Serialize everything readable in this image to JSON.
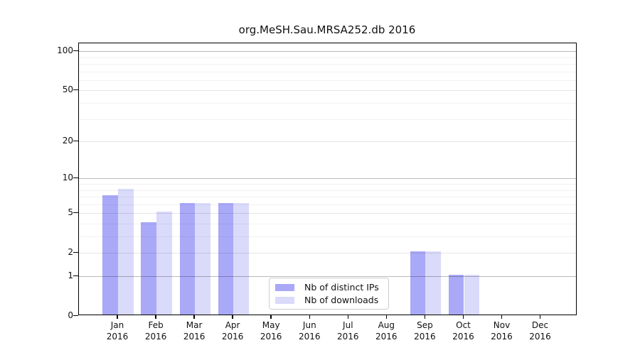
{
  "title": "org.MeSH.Sau.MRSA252.db 2016",
  "chart_data": {
    "type": "bar",
    "title": "org.MeSH.Sau.MRSA252.db 2016",
    "categories": [
      "Jan",
      "Feb",
      "Mar",
      "Apr",
      "May",
      "Jun",
      "Jul",
      "Aug",
      "Sep",
      "Oct",
      "Nov",
      "Dec"
    ],
    "category_year": "2016",
    "series": [
      {
        "name": "Nb of distinct IPs",
        "color": "#a9a9f8",
        "values": [
          7,
          4,
          6,
          6,
          0,
          0,
          0,
          0,
          2,
          1,
          0,
          0
        ]
      },
      {
        "name": "Nb of downloads",
        "color": "#dadafa",
        "values": [
          8,
          5,
          6,
          6,
          0,
          0,
          0,
          0,
          2,
          1,
          0,
          0
        ]
      }
    ],
    "y_axis": {
      "scale": "log1p",
      "major_ticks": [
        0,
        1,
        2,
        5,
        10,
        20,
        50,
        100
      ],
      "decade_ticks": [
        1,
        10,
        100
      ],
      "minor_gridlines": [
        3,
        4,
        6,
        7,
        8,
        9,
        30,
        40,
        60,
        70,
        80,
        90
      ],
      "ylim": [
        0,
        115
      ]
    },
    "grid": "on",
    "legend_position": "lower-center-inside"
  }
}
